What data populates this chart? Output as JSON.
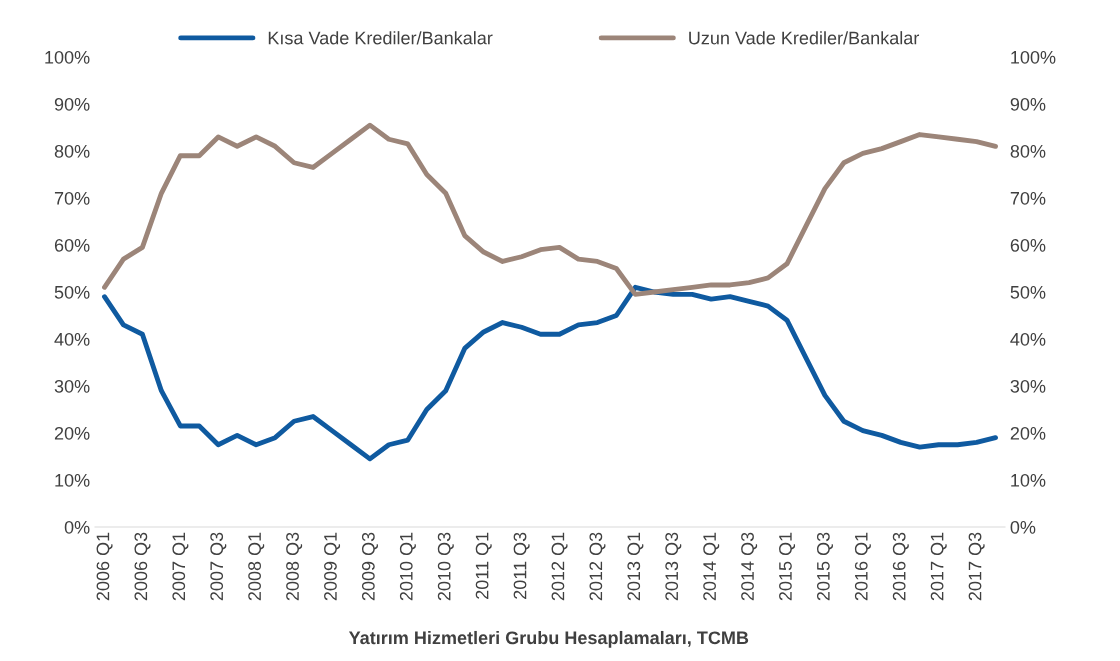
{
  "chart_data": {
    "type": "line",
    "categories": [
      "2006 Q1",
      null,
      "2006 Q3",
      null,
      "2007 Q1",
      null,
      "2007 Q3",
      null,
      "2008 Q1",
      null,
      "2008 Q3",
      null,
      "2009 Q1",
      null,
      "2009 Q3",
      null,
      "2010 Q1",
      null,
      "2010 Q3",
      null,
      "2011 Q1",
      null,
      "2011 Q3",
      null,
      "2012 Q1",
      null,
      "2012 Q3",
      null,
      "2013 Q1",
      null,
      "2013 Q3",
      null,
      "2014 Q1",
      null,
      "2014 Q3",
      null,
      "2015 Q1",
      null,
      "2015 Q3",
      null,
      "2016 Q1",
      null,
      "2016 Q3",
      null,
      "2017 Q1",
      null,
      "2017 Q3",
      null
    ],
    "series": [
      {
        "name": "Kısa Vade Krediler/Bankalar",
        "color": "#0f5aa0",
        "values": [
          49,
          43,
          41,
          29,
          21.5,
          21.5,
          17.5,
          19.5,
          17.5,
          19,
          22.5,
          23.5,
          20.5,
          17.5,
          14.5,
          17.5,
          18.5,
          25,
          29,
          38,
          41.5,
          43.5,
          42.5,
          41,
          41,
          43,
          43.5,
          45,
          51,
          50,
          49.5,
          49.5,
          48.5,
          49,
          48,
          47,
          44,
          36,
          28,
          22.5,
          20.5,
          19.5,
          18,
          17,
          17.5,
          17.5,
          18,
          19
        ]
      },
      {
        "name": "Uzun Vade Krediler/Bankalar",
        "color": "#9c8579",
        "values": [
          51,
          57,
          59.5,
          71,
          79,
          79,
          83,
          81,
          83,
          81,
          77.5,
          76.5,
          79.5,
          82.5,
          85.5,
          82.5,
          81.5,
          75,
          71,
          62,
          58.5,
          56.5,
          57.5,
          59,
          59.5,
          57,
          56.5,
          55,
          49.5,
          50,
          50.5,
          51,
          51.5,
          51.5,
          52,
          53,
          56,
          64,
          72,
          77.5,
          79.5,
          80.5,
          82,
          83.5,
          83,
          82.5,
          82,
          81
        ]
      }
    ],
    "ylim": [
      0,
      100
    ],
    "yticks": [
      {
        "value": 0,
        "label": "0%"
      },
      {
        "value": 10,
        "label": "10%"
      },
      {
        "value": 20,
        "label": "20%"
      },
      {
        "value": 30,
        "label": "30%"
      },
      {
        "value": 40,
        "label": "40%"
      },
      {
        "value": 50,
        "label": "50%"
      },
      {
        "value": 60,
        "label": "60%"
      },
      {
        "value": 70,
        "label": "70%"
      },
      {
        "value": 80,
        "label": "80%"
      },
      {
        "value": 90,
        "label": "90%"
      },
      {
        "value": 100,
        "label": "100%"
      }
    ],
    "y2lim": [
      0,
      100
    ],
    "y2ticks": [
      {
        "value": 0,
        "label": "0%"
      },
      {
        "value": 10,
        "label": "10%"
      },
      {
        "value": 20,
        "label": "20%"
      },
      {
        "value": 30,
        "label": "30%"
      },
      {
        "value": 40,
        "label": "40%"
      },
      {
        "value": 50,
        "label": "50%"
      },
      {
        "value": 60,
        "label": "60%"
      },
      {
        "value": 70,
        "label": "70%"
      },
      {
        "value": 80,
        "label": "80%"
      },
      {
        "value": 90,
        "label": "90%"
      },
      {
        "value": 100,
        "label": "100%"
      }
    ],
    "annotations": [
      "Yatırım Hizmetleri Grubu Hesaplamaları, TCMB"
    ],
    "legend": "top",
    "grid": false,
    "marker": "none",
    "line_style": "solid"
  }
}
